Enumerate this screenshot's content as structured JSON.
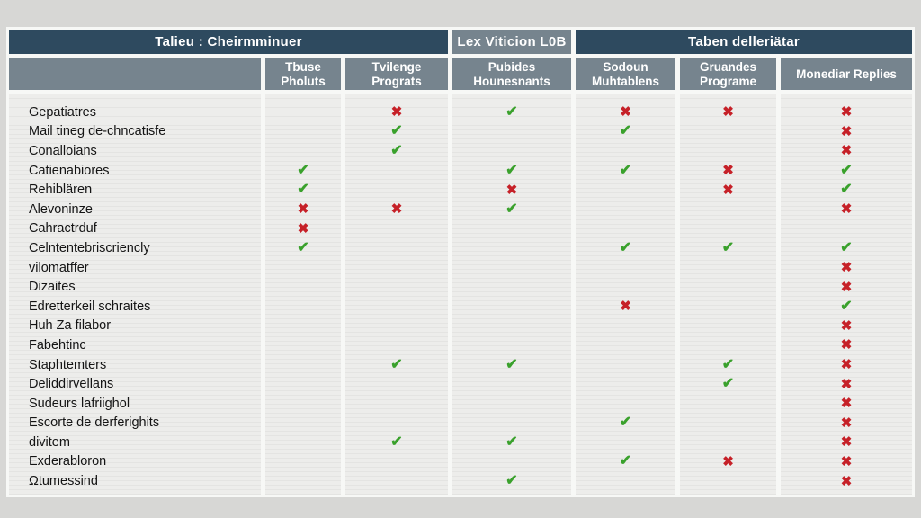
{
  "chart_data": {
    "type": "table",
    "title": "Talieu : Cheirmminuer",
    "group_headers": [
      {
        "label": "Talieu : Cheirmminuer",
        "span": "row labels + columns 1-2",
        "style": "navy"
      },
      {
        "label": "Lex Viticion L0B",
        "span": "column 3",
        "style": "gray"
      },
      {
        "label": "Taben delleriätar",
        "span": "columns 4-6",
        "style": "navy"
      }
    ],
    "columns": [
      "Tbuse Pholuts",
      "Tvilenge Prograts",
      "Pubides Hounesnants",
      "Sodoun Muhtablens",
      "Gruandes Programe",
      "Monediar Replies"
    ],
    "glyphs": {
      "check": "✔",
      "cross": "✖"
    },
    "mark_legend": {
      "c": "green check",
      "x": "red cross",
      "": "empty"
    },
    "colors": {
      "header_navy": "#2e4a5f",
      "header_gray": "#76848e",
      "check_green": "#3aa12c",
      "cross_red": "#c62128",
      "page_background": "#d7d7d5",
      "cell_background": "#ededeb"
    },
    "rows": [
      {
        "label": "Gepatiatres",
        "marks": [
          "",
          "x",
          "c",
          "x",
          "x",
          "x"
        ]
      },
      {
        "label": "Mail tineg de-chncatisfe",
        "marks": [
          "",
          "c",
          "",
          "c",
          "",
          "x"
        ]
      },
      {
        "label": "Conalloians",
        "marks": [
          "",
          "c",
          "",
          "",
          "",
          "x"
        ]
      },
      {
        "label": "Catienabiores",
        "marks": [
          "c",
          "",
          "c",
          "c",
          "x",
          "c"
        ]
      },
      {
        "label": "Rehiblären",
        "marks": [
          "c",
          "",
          "x",
          "",
          "x",
          "c"
        ]
      },
      {
        "label": "Alevoninze",
        "marks": [
          "x",
          "x",
          "c",
          "",
          "",
          "x"
        ]
      },
      {
        "label": "Cahractrduf",
        "marks": [
          "x",
          "",
          "",
          "",
          "",
          ""
        ]
      },
      {
        "label": "Celntentebriscriencly",
        "marks": [
          "c",
          "",
          "",
          "c",
          "c",
          "c"
        ]
      },
      {
        "label": "vilomatffer",
        "marks": [
          "",
          "",
          "",
          "",
          "",
          "x"
        ]
      },
      {
        "label": "Dizaites",
        "marks": [
          "",
          "",
          "",
          "",
          "",
          "x"
        ]
      },
      {
        "label": "Edretterkeil schraites",
        "marks": [
          "",
          "",
          "",
          "x",
          "",
          "c"
        ]
      },
      {
        "label": "Huh Za filabor",
        "marks": [
          "",
          "",
          "",
          "",
          "",
          "x"
        ]
      },
      {
        "label": "Fabehtinc",
        "marks": [
          "",
          "",
          "",
          "",
          "",
          "x"
        ]
      },
      {
        "label": "Staphtemters",
        "marks": [
          "",
          "c",
          "c",
          "",
          "c",
          "x"
        ]
      },
      {
        "label": "Deliddirvellans",
        "marks": [
          "",
          "",
          "",
          "",
          "c",
          "x"
        ]
      },
      {
        "label": "Sudeurs lafriighol",
        "marks": [
          "",
          "",
          "",
          "",
          "",
          "x"
        ]
      },
      {
        "label": "Escorte de derferighits",
        "marks": [
          "",
          "",
          "",
          "c",
          "",
          "x"
        ]
      },
      {
        "label": "divitem",
        "marks": [
          "",
          "c",
          "c",
          "",
          "",
          "x"
        ]
      },
      {
        "label": "Exderabloron",
        "marks": [
          "",
          "",
          "",
          "c",
          "x",
          "x"
        ]
      },
      {
        "label": "Ωtumessind",
        "marks": [
          "",
          "",
          "c",
          "",
          "",
          "x"
        ]
      }
    ]
  }
}
